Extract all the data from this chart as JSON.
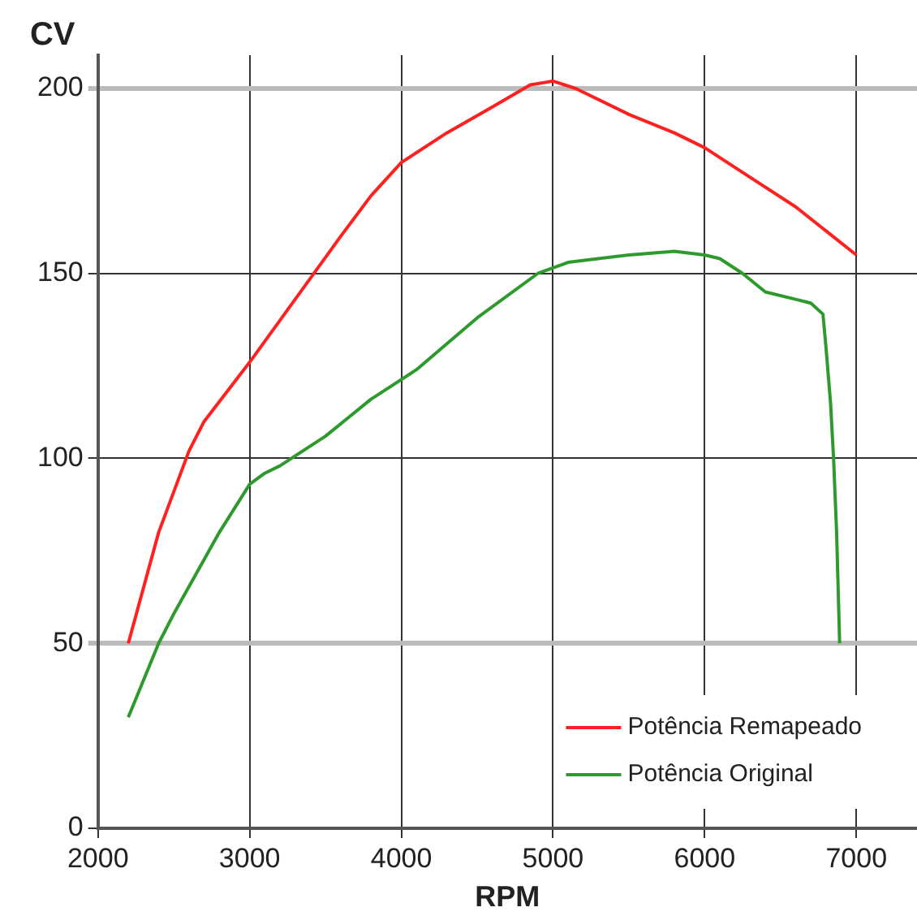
{
  "chart_data": {
    "type": "line",
    "xlabel": "RPM",
    "ylabel": "CV",
    "xlim": [
      2000,
      7400
    ],
    "ylim": [
      0,
      209
    ],
    "xticks": [
      2000,
      3000,
      4000,
      5000,
      6000,
      7000
    ],
    "yticks": [
      0,
      50,
      100,
      150,
      200
    ],
    "grid": true,
    "legend": "bottom right",
    "marker": "none",
    "line_style": "solid",
    "series": [
      {
        "name": "Potência Remapeado",
        "color": "#ff2020",
        "x": [
          2200,
          2400,
          2600,
          2700,
          3000,
          3300,
          3600,
          3800,
          4000,
          4300,
          4600,
          4850,
          5000,
          5150,
          5500,
          5800,
          6000,
          6300,
          6600,
          7000
        ],
        "values": [
          50,
          80,
          102,
          110,
          126,
          143,
          160,
          171,
          180,
          188,
          195,
          201,
          202,
          200,
          193,
          188,
          184,
          176,
          168,
          155
        ]
      },
      {
        "name": "Potência Original",
        "color": "#2e9a2e",
        "x": [
          2200,
          2300,
          2400,
          2500,
          2800,
          3000,
          3100,
          3200,
          3500,
          3800,
          4100,
          4500,
          4900,
          5100,
          5500,
          5800,
          6000,
          6100,
          6250,
          6400,
          6600,
          6700,
          6780,
          6800,
          6830,
          6850,
          6870,
          6880,
          6890
        ],
        "values": [
          30,
          40,
          50,
          58,
          80,
          93,
          96,
          98,
          106,
          116,
          124,
          138,
          150,
          153,
          155,
          156,
          155,
          154,
          150,
          145,
          143,
          142,
          139,
          130,
          115,
          100,
          80,
          65,
          50
        ]
      }
    ]
  }
}
